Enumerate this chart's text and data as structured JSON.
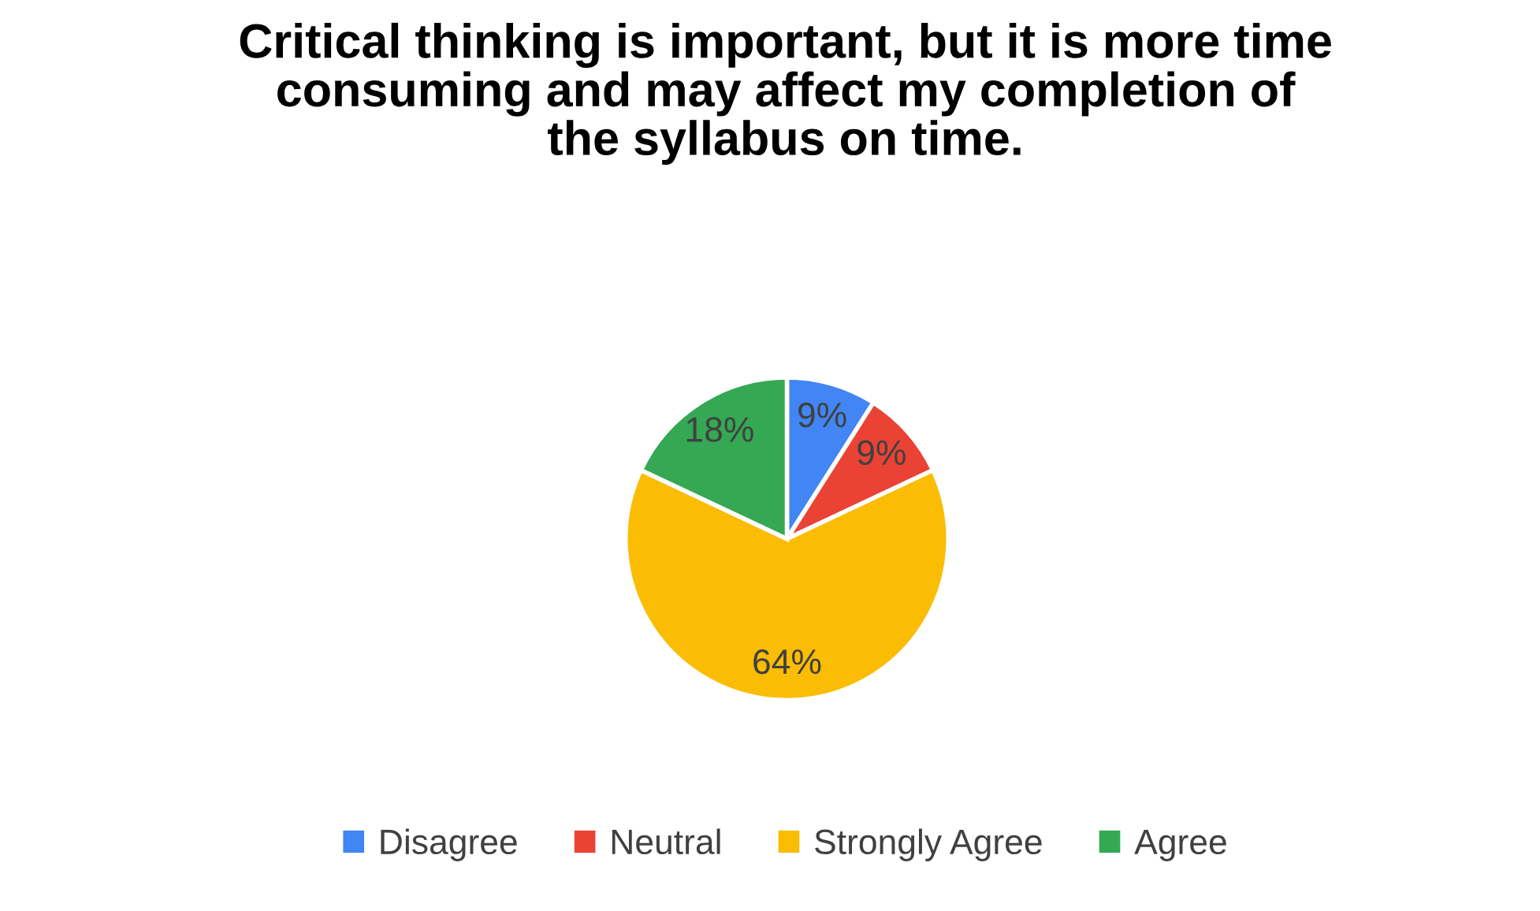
{
  "chart_data": {
    "type": "pie",
    "title": "Critical thinking is important, but it is more time consuming and may affect my completion of the syllabus on time.",
    "categories": [
      "Disagree",
      "Neutral",
      "Strongly Agree",
      "Agree"
    ],
    "values": [
      9,
      9,
      64,
      18
    ],
    "colors": [
      "#4285f4",
      "#ea4335",
      "#fbbc04",
      "#34a853"
    ],
    "value_labels": [
      "9%",
      "9%",
      "64%",
      "18%"
    ],
    "legend": "bottom"
  }
}
